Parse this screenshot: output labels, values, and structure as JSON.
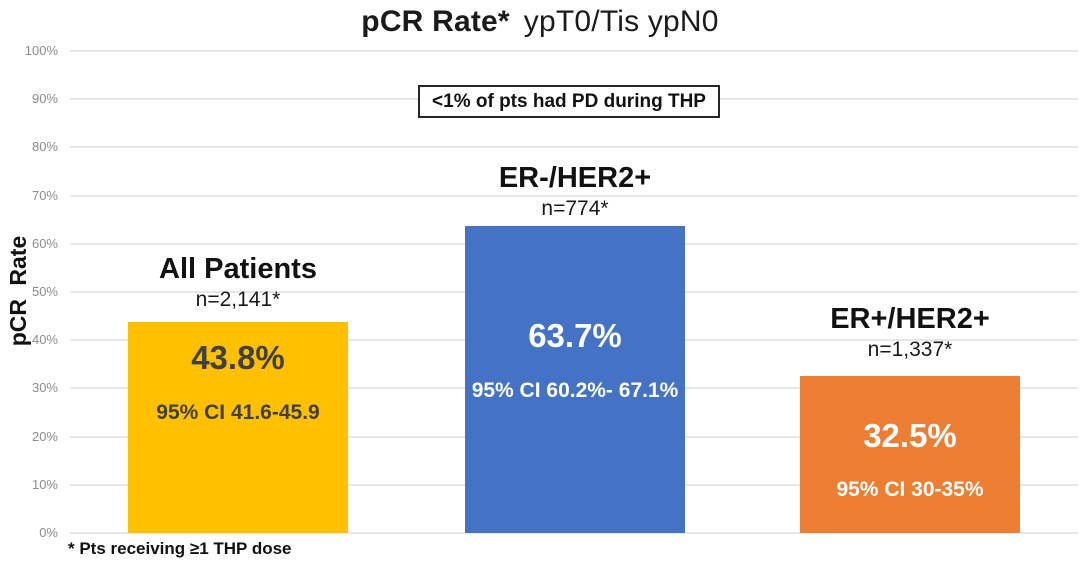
{
  "chart_data": {
    "type": "bar",
    "title_bold": "pCR Rate*",
    "title_regular": "ypT0/Tis ypN0",
    "ylabel": "pCR Rate",
    "ylim": [
      0,
      100
    ],
    "ytick_step": 10,
    "grid": true,
    "legend": "none",
    "yticks": [
      "0%",
      "10%",
      "20%",
      "30%",
      "40%",
      "50%",
      "60%",
      "70%",
      "80%",
      "90%",
      "100%"
    ],
    "annotation_box": "<1% of pts had PD during THP",
    "footnote": "* Pts receiving ≥1 THP dose",
    "categories": [
      "All Patients",
      "ER-/HER2+",
      "ER+/HER2+"
    ],
    "values": [
      43.8,
      63.7,
      32.5
    ],
    "bars": [
      {
        "label": "All Patients",
        "n": "n=2,141*",
        "value": 43.8,
        "value_label": "43.8%",
        "ci": "95% CI 41.6-45.9",
        "color": "#FFC000",
        "text_color": "#404040"
      },
      {
        "label": "ER-/HER2+",
        "n": "n=774*",
        "value": 63.7,
        "value_label": "63.7%",
        "ci": "95% CI 60.2%- 67.1%",
        "color": "#4472C4",
        "text_color": "#FFFFFF"
      },
      {
        "label": "ER+/HER2+",
        "n": "n=1,337*",
        "value": 32.5,
        "value_label": "32.5%",
        "ci": "95% CI 30-35%",
        "color": "#ED7D31",
        "text_color": "#FFFFFF"
      }
    ]
  }
}
